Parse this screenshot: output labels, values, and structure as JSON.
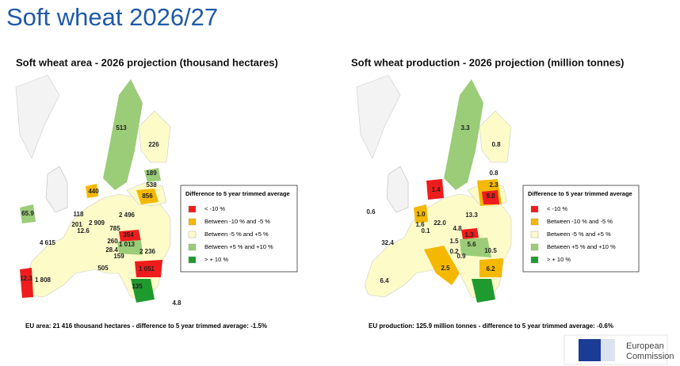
{
  "title": "Soft wheat 2026/27",
  "maps": [
    {
      "title": "Soft wheat area - 2026 projection  (thousand hectares)",
      "legend": {
        "title": "Difference to 5 year trimmed average",
        "items": [
          {
            "label": "< -10 %",
            "color": "#ee1c1c"
          },
          {
            "label": "Between -10 % and -5 %",
            "color": "#f5b800"
          },
          {
            "label": "Between -5 % and +5 %",
            "color": "#fdfbc8"
          },
          {
            "label": "Between +5 % and +10 %",
            "color": "#9bcc78"
          },
          {
            "label": "> + 10 %",
            "color": "#1f9a2e"
          }
        ]
      },
      "labels": [
        "513",
        "226",
        "189",
        "538",
        "440",
        "856",
        "65.9",
        "118",
        "2 496",
        "201",
        "2 909",
        "785",
        "12.6",
        "260",
        "354",
        "4 615",
        "28.4",
        "1 013",
        "2 236",
        "159",
        "505",
        "1 051",
        "12.3",
        "1 808",
        "135",
        "4.8"
      ],
      "footnote": "EU area: 21 416 thousand hectares - difference to 5 year trimmed average: -1.5%"
    },
    {
      "title": "Soft wheat production - 2026 projection  (million tonnes)",
      "legend": {
        "title": "Difference to 5 year trimmed average",
        "items": [
          {
            "label": "< -10 %",
            "color": "#ee1c1c"
          },
          {
            "label": "Between -10 % and -5 %",
            "color": "#f5b800"
          },
          {
            "label": "Between -5 % and +5 %",
            "color": "#fdfbc8"
          },
          {
            "label": "Between +5 % and +10 %",
            "color": "#9bcc78"
          },
          {
            "label": "> + 10 %",
            "color": "#1f9a2e"
          }
        ]
      },
      "labels": [
        "3.3",
        "0.8",
        "0.8",
        "2.3",
        "9.8",
        "1.4",
        "0.6",
        "1.0",
        "13.3",
        "1.6",
        "22.0",
        "0.1",
        "4.8",
        "1.3",
        "32.4",
        "1.5",
        "0.2",
        "5.6",
        "10.5",
        "0.9",
        "2.5",
        "6.2",
        "6.4"
      ],
      "footnote": "EU production: 125.9 million tonnes - difference to 5 year trimmed average: -0.6%"
    }
  ],
  "logo": {
    "line1": "European",
    "line2": "Commission"
  }
}
